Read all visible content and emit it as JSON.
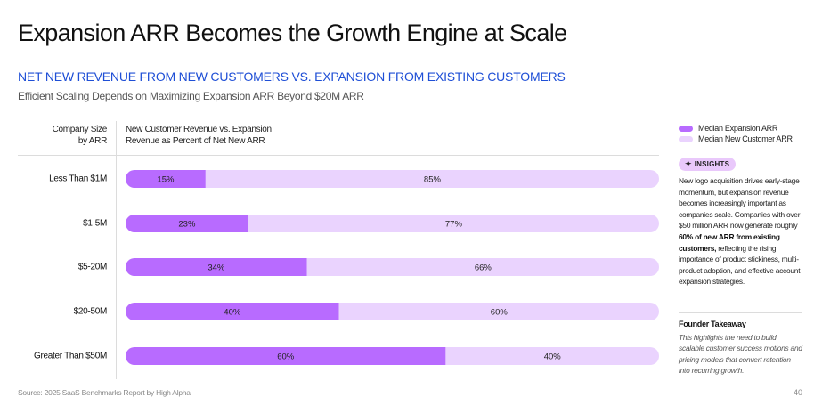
{
  "page": {
    "title": "Expansion ARR Becomes the Growth Engine at Scale",
    "subtitle": "NET NEW REVENUE FROM NEW CUSTOMERS VS. EXPANSION FROM EXISTING CUSTOMERS",
    "tagline": "Efficient Scaling Depends on Maximizing Expansion ARR Beyond $20M ARR",
    "source": "Source: 2025 SaaS Benchmarks Report by High Alpha",
    "page_number": "40"
  },
  "table_headers": {
    "left_line1": "Company Size",
    "left_line2": "by ARR",
    "right_line1": "New Customer Revenue vs. Expansion",
    "right_line2": "Revenue as Percent of Net New ARR"
  },
  "colors": {
    "expansion": "#B86BFF",
    "new_customer": "#EAD3FE",
    "subtitle_blue": "#1F4FD6",
    "badge": "#E9C8FB"
  },
  "chart_data": {
    "type": "bar",
    "orientation": "horizontal",
    "stacked": true,
    "normalized_to": 100,
    "title": "NET NEW REVENUE FROM NEW CUSTOMERS VS. EXPANSION FROM EXISTING CUSTOMERS",
    "xlabel": "New Customer Revenue vs. Expansion Revenue as Percent of Net New ARR",
    "ylabel": "Company Size by ARR",
    "xlim": [
      0,
      100
    ],
    "categories": [
      "Less Than  $1M",
      "$1-5M",
      "$5-20M",
      "$20-50M",
      "Greater Than $50M"
    ],
    "series": [
      {
        "name": "Median Expansion ARR",
        "values": [
          15,
          23,
          34,
          40,
          60
        ],
        "labels": [
          "15%",
          "23%",
          "34%",
          "40%",
          "60%"
        ]
      },
      {
        "name": "Median New Customer ARR",
        "values": [
          85,
          77,
          66,
          60,
          40
        ],
        "labels": [
          "85%",
          "77%",
          "66%",
          "60%",
          "40%"
        ]
      }
    ],
    "legend": {
      "placement": "top-right",
      "entries": [
        "Median Expansion ARR",
        "Median New Customer ARR"
      ]
    },
    "grid": false
  },
  "insights": {
    "badge_label": "INSIGHTS",
    "badge_icon": "sparkle-plus-icon",
    "text_part1": "New logo acquisition drives early-stage momentum, but expansion revenue becomes increasingly important as companies scale. Companies with over $50 million ARR now generate roughly ",
    "text_bold": "60% of new ARR from existing customers,",
    "text_part2": " reflecting the rising importance of product stickiness, multi-product adoption, and effective account expansion strategies."
  },
  "takeaway": {
    "title": "Founder Takeaway",
    "text": "This highlights the need to build scalable customer success motions and pricing models that convert retention into recurring growth."
  }
}
